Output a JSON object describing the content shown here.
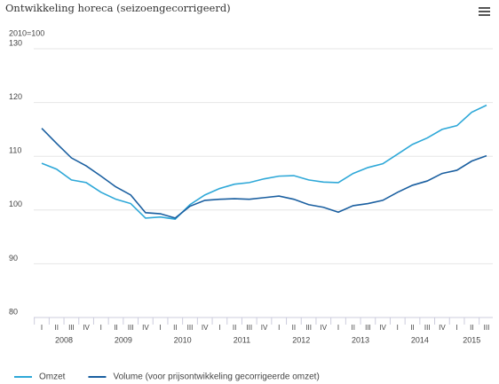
{
  "chart_data": {
    "type": "line",
    "title": "Ontwikkeling horeca (seizoengecorrigeerd)",
    "subtitle": "2010=100",
    "categories": [
      "I",
      "II",
      "III",
      "IV",
      "I",
      "II",
      "III",
      "IV",
      "I",
      "II",
      "III",
      "IV",
      "I",
      "II",
      "III",
      "IV",
      "I",
      "II",
      "III",
      "IV",
      "I",
      "II",
      "III",
      "IV",
      "I",
      "II",
      "III",
      "IV",
      "I",
      "II",
      "III"
    ],
    "year_labels": [
      "2008",
      "2009",
      "2010",
      "2011",
      "2012",
      "2013",
      "2014",
      "2015"
    ],
    "series": [
      {
        "name": "Omzet",
        "color": "#2ea8d8",
        "values": [
          108.7,
          107.6,
          105.6,
          105.1,
          103.3,
          102.0,
          101.2,
          98.5,
          98.7,
          98.3,
          101.0,
          102.8,
          104.0,
          104.8,
          105.1,
          105.8,
          106.3,
          106.4,
          105.6,
          105.2,
          105.1,
          106.8,
          107.9,
          108.6,
          110.4,
          112.2,
          113.4,
          115.0,
          115.7,
          118.2,
          119.5
        ]
      },
      {
        "name": "Volume (voor prijsontwikkeling gecorrigeerde omzet)",
        "color": "#1a5fa0",
        "values": [
          115.2,
          112.4,
          109.7,
          108.2,
          106.3,
          104.3,
          102.8,
          99.5,
          99.3,
          98.5,
          100.7,
          101.8,
          102.0,
          102.1,
          102.0,
          102.3,
          102.6,
          102.0,
          101.0,
          100.5,
          99.6,
          100.8,
          101.2,
          101.8,
          103.3,
          104.6,
          105.4,
          106.8,
          107.4,
          109.1,
          110.1
        ]
      }
    ],
    "ylim": [
      80,
      130
    ],
    "yticks": [
      80,
      90,
      100,
      110,
      120,
      130
    ],
    "grid": true,
    "legend": "bottom"
  }
}
